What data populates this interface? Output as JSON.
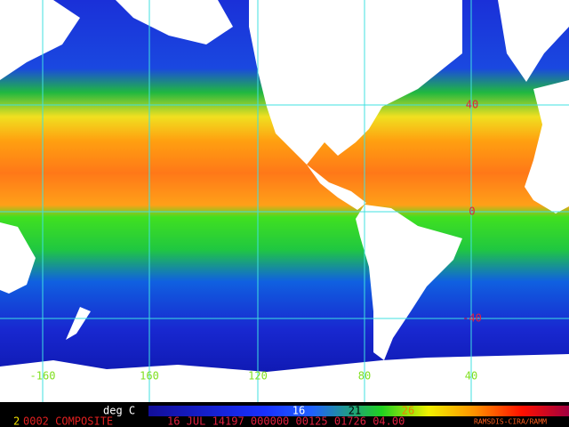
{
  "grid_labels": {
    "latitude": [
      "40",
      "0",
      "-40"
    ],
    "longitude": [
      "-160",
      "160",
      "120",
      "80",
      "40"
    ]
  },
  "colorbar": {
    "unit": "deg C",
    "labels": [
      "16",
      "21",
      "26"
    ]
  },
  "footer": {
    "prefix": "2",
    "product": "0002 COMPOSITE",
    "info": "16 JUL 14197 000000 00125 01726 04.00",
    "source": "RAMSDIS-CIRA/RAMM"
  }
}
